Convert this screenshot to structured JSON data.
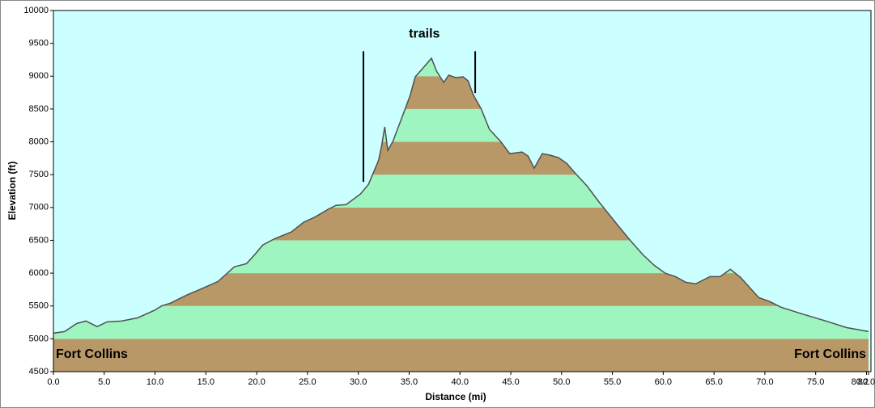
{
  "chart_data": {
    "type": "area",
    "xlabel": "Distance  (mi)",
    "ylabel": "Elevation (ft)",
    "x": [
      0,
      1.1,
      2.3,
      3.2,
      4.3,
      5.3,
      6.7,
      8.3,
      9.9,
      10.7,
      11.5,
      13.1,
      14.6,
      16.2,
      17.8,
      19.0,
      19.8,
      20.6,
      21.8,
      23.4,
      24.6,
      25.8,
      27.0,
      27.8,
      28.8,
      30.2,
      31.0,
      31.5,
      32.0,
      32.3,
      32.6,
      32.9,
      33.4,
      34.0,
      34.6,
      35.1,
      35.6,
      36.3,
      37.2,
      37.7,
      38.4,
      38.9,
      39.6,
      40.3,
      40.8,
      41.3,
      42.1,
      42.9,
      44.0,
      44.9,
      46.1,
      46.7,
      47.3,
      48.1,
      48.9,
      49.7,
      50.5,
      51.4,
      52.5,
      53.7,
      55.3,
      56.8,
      58.0,
      59.1,
      60.2,
      61.2,
      62.2,
      63.2,
      64.6,
      65.6,
      66.6,
      67.6,
      69.4,
      70.5,
      71.6,
      73.6,
      76.0,
      78.0,
      80.2
    ],
    "values": [
      5086,
      5110,
      5234,
      5271,
      5185,
      5259,
      5271,
      5320,
      5431,
      5505,
      5542,
      5665,
      5764,
      5875,
      6096,
      6145,
      6281,
      6429,
      6527,
      6626,
      6773,
      6860,
      6970,
      7032,
      7044,
      7204,
      7352,
      7537,
      7722,
      7943,
      8227,
      7870,
      8005,
      8251,
      8498,
      8707,
      8990,
      9113,
      9273,
      9076,
      8904,
      9015,
      8978,
      8990,
      8929,
      8719,
      8498,
      8190,
      8005,
      7820,
      7845,
      7783,
      7599,
      7820,
      7796,
      7759,
      7672,
      7512,
      7328,
      7081,
      6773,
      6490,
      6281,
      6121,
      5998,
      5948,
      5862,
      5838,
      5948,
      5948,
      6059,
      5936,
      5628,
      5567,
      5480,
      5382,
      5271,
      5172,
      5111
    ],
    "line_color": "#505050",
    "background": "#ccffff",
    "bands": {
      "step": 500,
      "colors": [
        "#b99868",
        "#9ff5bf"
      ]
    },
    "xlim": [
      0,
      80.2
    ],
    "ylim": [
      4500,
      10000
    ],
    "xticks": [
      {
        "value": 0,
        "label": "0.0"
      },
      {
        "value": 5,
        "label": "5.0"
      },
      {
        "value": 10,
        "label": "10.0"
      },
      {
        "value": 15,
        "label": "15.0"
      },
      {
        "value": 20,
        "label": "20.0"
      },
      {
        "value": 25,
        "label": "25.0"
      },
      {
        "value": 30,
        "label": "30.0"
      },
      {
        "value": 35,
        "label": "35.0"
      },
      {
        "value": 40,
        "label": "40.0"
      },
      {
        "value": 45,
        "label": "45.0"
      },
      {
        "value": 50,
        "label": "50.0"
      },
      {
        "value": 55,
        "label": "55.0"
      },
      {
        "value": 60,
        "label": "60.0"
      },
      {
        "value": 65,
        "label": "65.0"
      },
      {
        "value": 70,
        "label": "70.0"
      },
      {
        "value": 75,
        "label": "75.0"
      },
      {
        "value": 80,
        "label": "80.0"
      },
      80.2
    ],
    "yticks": [
      4500,
      5000,
      5500,
      6000,
      6500,
      7000,
      7500,
      8000,
      8500,
      9000,
      9500,
      10000
    ],
    "annotations": [
      {
        "text": "trails",
        "x": 36.5,
        "y": 9640,
        "align": "middle"
      },
      {
        "text": "Fort Collins",
        "x": 0,
        "y": 4760,
        "align": "start"
      },
      {
        "text": "Fort Collins",
        "x": 80.2,
        "y": 4760,
        "align": "end"
      }
    ],
    "markers": [
      {
        "x": 30.5,
        "y": [
          7390,
          9380
        ]
      },
      {
        "x": 41.5,
        "y": [
          8744,
          9380
        ]
      }
    ]
  }
}
